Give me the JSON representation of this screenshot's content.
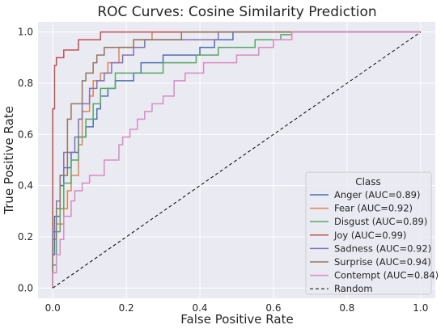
{
  "chart_data": {
    "type": "line",
    "title": "ROC Curves: Cosine Similarity Prediction",
    "xlabel": "False Positive Rate",
    "ylabel": "True Positive Rate",
    "xlim": [
      -0.04,
      1.04
    ],
    "ylim": [
      -0.04,
      1.04
    ],
    "xticks": [
      {
        "value": 0.0,
        "label": "0.0"
      },
      {
        "value": 0.2,
        "label": "0.2"
      },
      {
        "value": 0.4,
        "label": "0.4"
      },
      {
        "value": 0.6,
        "label": "0.6"
      },
      {
        "value": 0.8,
        "label": "0.8"
      },
      {
        "value": 1.0,
        "label": "1.0"
      }
    ],
    "yticks": [
      {
        "value": 0.0,
        "label": "0.0"
      },
      {
        "value": 0.2,
        "label": "0.2"
      },
      {
        "value": 0.4,
        "label": "0.4"
      },
      {
        "value": 0.6,
        "label": "0.6"
      },
      {
        "value": 0.8,
        "label": "0.8"
      },
      {
        "value": 1.0,
        "label": "1.0"
      }
    ],
    "grid": true,
    "background": "#eaeaf2",
    "legend": {
      "title": "Class",
      "position": "bottom-right"
    },
    "series": [
      {
        "name": "Anger (AUC=0.89)",
        "color": "#4c72b0",
        "points": [
          [
            0,
            0
          ],
          [
            0,
            0.13
          ],
          [
            0.005,
            0.13
          ],
          [
            0.005,
            0.28
          ],
          [
            0.02,
            0.28
          ],
          [
            0.02,
            0.4
          ],
          [
            0.03,
            0.4
          ],
          [
            0.03,
            0.47
          ],
          [
            0.05,
            0.47
          ],
          [
            0.05,
            0.53
          ],
          [
            0.07,
            0.53
          ],
          [
            0.07,
            0.59
          ],
          [
            0.09,
            0.59
          ],
          [
            0.09,
            0.63
          ],
          [
            0.11,
            0.63
          ],
          [
            0.11,
            0.66
          ],
          [
            0.12,
            0.66
          ],
          [
            0.12,
            0.7
          ],
          [
            0.13,
            0.7
          ],
          [
            0.13,
            0.75
          ],
          [
            0.15,
            0.75
          ],
          [
            0.15,
            0.78
          ],
          [
            0.17,
            0.78
          ],
          [
            0.17,
            0.81
          ],
          [
            0.22,
            0.81
          ],
          [
            0.22,
            0.84
          ],
          [
            0.24,
            0.84
          ],
          [
            0.24,
            0.88
          ],
          [
            0.3,
            0.88
          ],
          [
            0.3,
            0.91
          ],
          [
            0.4,
            0.91
          ],
          [
            0.4,
            0.94
          ],
          [
            0.44,
            0.94
          ],
          [
            0.44,
            0.97
          ],
          [
            0.49,
            0.97
          ],
          [
            0.49,
            1.0
          ],
          [
            1.0,
            1.0
          ]
        ]
      },
      {
        "name": "Fear (AUC=0.92)",
        "color": "#dd8452",
        "points": [
          [
            0,
            0
          ],
          [
            0,
            0.06
          ],
          [
            0.01,
            0.06
          ],
          [
            0.01,
            0.25
          ],
          [
            0.03,
            0.25
          ],
          [
            0.03,
            0.31
          ],
          [
            0.04,
            0.31
          ],
          [
            0.04,
            0.38
          ],
          [
            0.05,
            0.38
          ],
          [
            0.05,
            0.44
          ],
          [
            0.07,
            0.44
          ],
          [
            0.07,
            0.56
          ],
          [
            0.08,
            0.56
          ],
          [
            0.08,
            0.69
          ],
          [
            0.1,
            0.69
          ],
          [
            0.1,
            0.75
          ],
          [
            0.11,
            0.75
          ],
          [
            0.11,
            0.81
          ],
          [
            0.13,
            0.81
          ],
          [
            0.13,
            0.84
          ],
          [
            0.15,
            0.84
          ],
          [
            0.15,
            0.88
          ],
          [
            0.18,
            0.88
          ],
          [
            0.18,
            0.94
          ],
          [
            0.22,
            0.94
          ],
          [
            0.22,
            0.97
          ],
          [
            0.27,
            0.97
          ],
          [
            0.27,
            1.0
          ],
          [
            1.0,
            1.0
          ]
        ]
      },
      {
        "name": "Disgust (AUC=0.89)",
        "color": "#55a868",
        "points": [
          [
            0,
            0
          ],
          [
            0,
            0.09
          ],
          [
            0.01,
            0.09
          ],
          [
            0.01,
            0.22
          ],
          [
            0.02,
            0.22
          ],
          [
            0.02,
            0.31
          ],
          [
            0.03,
            0.31
          ],
          [
            0.03,
            0.41
          ],
          [
            0.05,
            0.41
          ],
          [
            0.05,
            0.5
          ],
          [
            0.07,
            0.5
          ],
          [
            0.07,
            0.59
          ],
          [
            0.09,
            0.59
          ],
          [
            0.09,
            0.66
          ],
          [
            0.11,
            0.66
          ],
          [
            0.11,
            0.72
          ],
          [
            0.13,
            0.72
          ],
          [
            0.13,
            0.78
          ],
          [
            0.17,
            0.78
          ],
          [
            0.17,
            0.84
          ],
          [
            0.3,
            0.84
          ],
          [
            0.3,
            0.88
          ],
          [
            0.39,
            0.88
          ],
          [
            0.39,
            0.91
          ],
          [
            0.45,
            0.91
          ],
          [
            0.45,
            0.94
          ],
          [
            0.55,
            0.94
          ],
          [
            0.55,
            0.97
          ],
          [
            0.62,
            0.97
          ],
          [
            0.62,
            0.99
          ],
          [
            0.65,
            0.99
          ],
          [
            0.65,
            1.0
          ],
          [
            1.0,
            1.0
          ]
        ]
      },
      {
        "name": "Joy (AUC=0.99)",
        "color": "#c44e52",
        "points": [
          [
            0,
            0
          ],
          [
            0,
            0.7
          ],
          [
            0.005,
            0.7
          ],
          [
            0.005,
            0.87
          ],
          [
            0.01,
            0.87
          ],
          [
            0.01,
            0.9
          ],
          [
            0.03,
            0.9
          ],
          [
            0.03,
            0.93
          ],
          [
            0.07,
            0.93
          ],
          [
            0.07,
            0.97
          ],
          [
            0.13,
            0.97
          ],
          [
            0.13,
            1.0
          ],
          [
            1.0,
            1.0
          ]
        ]
      },
      {
        "name": "Sadness (AUC=0.92)",
        "color": "#8172b3",
        "points": [
          [
            0,
            0
          ],
          [
            0,
            0.22
          ],
          [
            0.01,
            0.22
          ],
          [
            0.01,
            0.34
          ],
          [
            0.02,
            0.34
          ],
          [
            0.02,
            0.44
          ],
          [
            0.03,
            0.44
          ],
          [
            0.03,
            0.53
          ],
          [
            0.06,
            0.53
          ],
          [
            0.06,
            0.59
          ],
          [
            0.07,
            0.59
          ],
          [
            0.07,
            0.66
          ],
          [
            0.08,
            0.66
          ],
          [
            0.08,
            0.72
          ],
          [
            0.1,
            0.72
          ],
          [
            0.1,
            0.78
          ],
          [
            0.12,
            0.78
          ],
          [
            0.12,
            0.81
          ],
          [
            0.14,
            0.81
          ],
          [
            0.14,
            0.84
          ],
          [
            0.16,
            0.84
          ],
          [
            0.16,
            0.88
          ],
          [
            0.19,
            0.88
          ],
          [
            0.19,
            0.91
          ],
          [
            0.22,
            0.91
          ],
          [
            0.22,
            0.94
          ],
          [
            0.25,
            0.94
          ],
          [
            0.25,
            0.97
          ],
          [
            0.45,
            0.97
          ],
          [
            0.45,
            1.0
          ],
          [
            1.0,
            1.0
          ]
        ]
      },
      {
        "name": "Surprise (AUC=0.94)",
        "color": "#937860",
        "points": [
          [
            0,
            0
          ],
          [
            0,
            0.19
          ],
          [
            0.01,
            0.19
          ],
          [
            0.01,
            0.31
          ],
          [
            0.02,
            0.31
          ],
          [
            0.02,
            0.44
          ],
          [
            0.04,
            0.44
          ],
          [
            0.04,
            0.56
          ],
          [
            0.04,
            0.56
          ],
          [
            0.04,
            0.66
          ],
          [
            0.05,
            0.66
          ],
          [
            0.05,
            0.72
          ],
          [
            0.08,
            0.72
          ],
          [
            0.08,
            0.81
          ],
          [
            0.09,
            0.81
          ],
          [
            0.09,
            0.84
          ],
          [
            0.11,
            0.84
          ],
          [
            0.11,
            0.88
          ],
          [
            0.12,
            0.88
          ],
          [
            0.12,
            0.91
          ],
          [
            0.14,
            0.91
          ],
          [
            0.14,
            0.94
          ],
          [
            0.22,
            0.94
          ],
          [
            0.22,
            0.97
          ],
          [
            0.35,
            0.97
          ],
          [
            0.35,
            1.0
          ],
          [
            1.0,
            1.0
          ]
        ]
      },
      {
        "name": "Contempt (AUC=0.84)",
        "color": "#da8bc3",
        "points": [
          [
            0,
            0
          ],
          [
            0,
            0.06
          ],
          [
            0.01,
            0.06
          ],
          [
            0.01,
            0.13
          ],
          [
            0.02,
            0.13
          ],
          [
            0.02,
            0.19
          ],
          [
            0.03,
            0.19
          ],
          [
            0.03,
            0.28
          ],
          [
            0.05,
            0.28
          ],
          [
            0.05,
            0.34
          ],
          [
            0.06,
            0.34
          ],
          [
            0.06,
            0.38
          ],
          [
            0.08,
            0.38
          ],
          [
            0.08,
            0.41
          ],
          [
            0.1,
            0.41
          ],
          [
            0.1,
            0.44
          ],
          [
            0.14,
            0.44
          ],
          [
            0.14,
            0.5
          ],
          [
            0.18,
            0.5
          ],
          [
            0.18,
            0.56
          ],
          [
            0.19,
            0.56
          ],
          [
            0.19,
            0.59
          ],
          [
            0.21,
            0.59
          ],
          [
            0.21,
            0.62
          ],
          [
            0.23,
            0.62
          ],
          [
            0.23,
            0.66
          ],
          [
            0.25,
            0.66
          ],
          [
            0.25,
            0.69
          ],
          [
            0.27,
            0.69
          ],
          [
            0.27,
            0.72
          ],
          [
            0.3,
            0.72
          ],
          [
            0.3,
            0.75
          ],
          [
            0.33,
            0.75
          ],
          [
            0.33,
            0.81
          ],
          [
            0.36,
            0.81
          ],
          [
            0.36,
            0.84
          ],
          [
            0.41,
            0.84
          ],
          [
            0.41,
            0.88
          ],
          [
            0.5,
            0.88
          ],
          [
            0.5,
            0.91
          ],
          [
            0.56,
            0.91
          ],
          [
            0.56,
            0.94
          ],
          [
            0.6,
            0.94
          ],
          [
            0.6,
            0.97
          ],
          [
            0.65,
            0.97
          ],
          [
            0.65,
            1.0
          ],
          [
            1.0,
            1.0
          ]
        ]
      },
      {
        "name": "Random",
        "color": "#000000",
        "dashed": true,
        "points": [
          [
            0,
            0
          ],
          [
            1,
            1
          ]
        ]
      }
    ]
  }
}
